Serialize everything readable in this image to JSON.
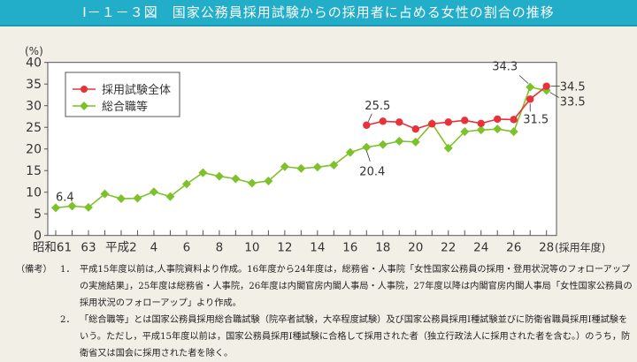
{
  "title": "Ⅰ－１－３図　国家公務員採用試験からの採用者に占める女性の割合の推移",
  "chart_data": {
    "type": "line",
    "ylabel": "(%)",
    "xlabel": "(採用年度)",
    "ylim": [
      0,
      40
    ],
    "yticks": [
      "0",
      "5",
      "10",
      "15",
      "20",
      "25",
      "30",
      "35",
      "40"
    ],
    "x": [
      "昭和61",
      "62",
      "63",
      "平成元",
      "2",
      "3",
      "4",
      "5",
      "6",
      "7",
      "8",
      "9",
      "10",
      "11",
      "12",
      "13",
      "14",
      "15",
      "16",
      "17",
      "18",
      "19",
      "20",
      "21",
      "22",
      "23",
      "24",
      "25",
      "26",
      "27",
      "28"
    ],
    "xtick_labels": [
      "昭和61",
      "",
      "63",
      "",
      "平成2",
      "",
      "4",
      "",
      "6",
      "",
      "8",
      "",
      "10",
      "",
      "12",
      "",
      "14",
      "",
      "16",
      "",
      "18",
      "",
      "20",
      "",
      "22",
      "",
      "24",
      "",
      "26",
      "",
      "28"
    ],
    "legend_position": "top-left",
    "series": [
      {
        "name": "採用試験全体",
        "color": "#e8323a",
        "marker": "circle",
        "values": [
          null,
          null,
          null,
          null,
          null,
          null,
          null,
          null,
          null,
          null,
          null,
          null,
          null,
          null,
          null,
          null,
          null,
          null,
          null,
          25.5,
          26.4,
          26.2,
          24.6,
          25.8,
          26.2,
          26.6,
          25.9,
          26.9,
          26.8,
          31.5,
          34.5
        ]
      },
      {
        "name": "総合職等",
        "color": "#7dc22a",
        "marker": "diamond",
        "values": [
          6.4,
          6.8,
          6.5,
          9.6,
          8.5,
          8.6,
          10.1,
          9.0,
          11.9,
          14.5,
          13.7,
          13.1,
          12.1,
          12.6,
          15.9,
          15.5,
          15.8,
          16.3,
          19.2,
          20.4,
          21.0,
          21.8,
          21.6,
          25.9,
          20.2,
          24.0,
          24.4,
          24.6,
          24.0,
          34.3,
          33.5
        ]
      }
    ],
    "annotations": [
      {
        "text": "6.4",
        "series": 1,
        "x": "昭和61"
      },
      {
        "text": "25.5",
        "series": 0,
        "x": "17"
      },
      {
        "text": "20.4",
        "series": 1,
        "x": "17"
      },
      {
        "text": "34.3",
        "series": 1,
        "x": "27"
      },
      {
        "text": "31.5",
        "series": 0,
        "x": "27"
      },
      {
        "text": "34.5",
        "series": 0,
        "x": "28"
      },
      {
        "text": "33.5",
        "series": 1,
        "x": "28"
      }
    ]
  },
  "notes": {
    "label": "（備考）",
    "items": [
      {
        "num": "1．",
        "text": "平成15年度以前は,人事院資料より作成。16年度から24年度は，総務省・人事院「女性国家公務員の採用・登用状況等のフォローアップの実施結果」，25年度は総務省・人事院，26年度は内閣官房内閣人事局・人事院，27年度以降は内閣官房内閣人事局「女性国家公務員の採用状況のフォローアップ」より作成。"
      },
      {
        "num": "2．",
        "text": "「総合職等」とは国家公務員採用総合職試験（院卒者試験，大卒程度試験）及び国家公務員採用Ⅰ種試験並びに防衛省職員採用Ⅰ種試験をいう。ただし，平成15年度以前は，国家公務員採用Ⅰ種試験に合格して採用された者（独立行政法人に採用された者を含む。）のうち，防衛省又は国会に採用された者を除く。"
      }
    ]
  }
}
